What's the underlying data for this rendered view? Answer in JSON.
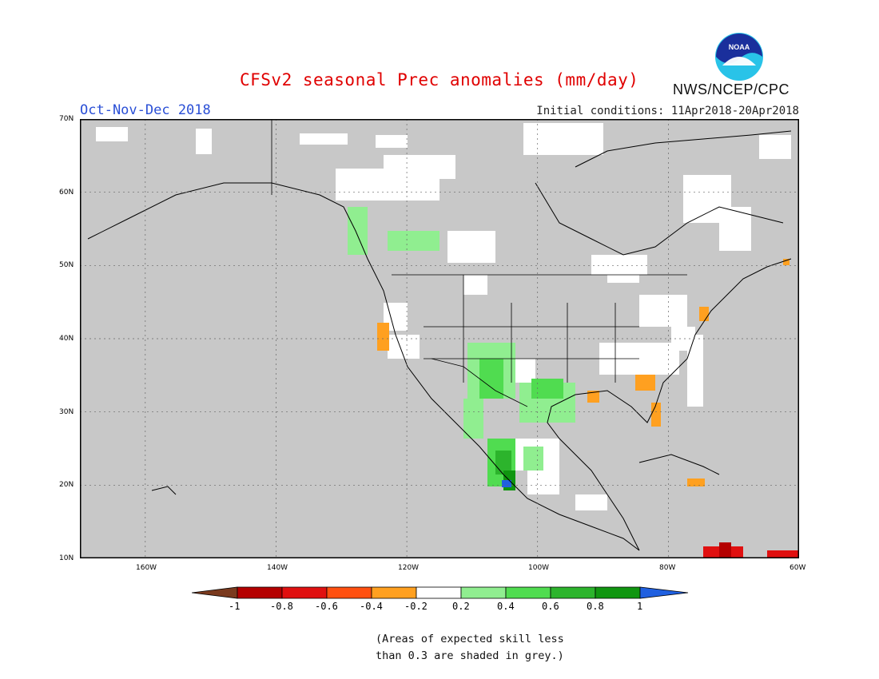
{
  "header": {
    "title": "CFSv2 seasonal Prec anomalies (mm/day)",
    "period": "Oct-Nov-Dec 2018",
    "initial_conditions": "Initial conditions: 11Apr2018-20Apr2018",
    "agency": "NWS/NCEP/CPC",
    "logo_text": "NOAA"
  },
  "map": {
    "projection": "lat-lon",
    "lon_range": [
      -170,
      -60
    ],
    "lat_range": [
      10,
      70
    ],
    "lat_labels": [
      "70N",
      "60N",
      "50N",
      "40N",
      "30N",
      "20N",
      "10N"
    ],
    "lon_labels": [
      "160W",
      "140W",
      "120W",
      "100W",
      "80W",
      "60W"
    ],
    "background_color": "#c8c8c8",
    "grid": true
  },
  "colorbar": {
    "labels": [
      "-1",
      "-0.8",
      "-0.6",
      "-0.4",
      "-0.2",
      "0.2",
      "0.4",
      "0.6",
      "0.8",
      "1"
    ],
    "colors": [
      "#7a3a1e",
      "#b40000",
      "#e01010",
      "#ff5010",
      "#ffa020",
      "#ffffff",
      "#90ee90",
      "#50dc50",
      "#2cb42c",
      "#109610",
      "#2060e0"
    ]
  },
  "note": {
    "line1": "(Areas of expected skill less",
    "line2": "than 0.3 are shaded in grey.)"
  }
}
